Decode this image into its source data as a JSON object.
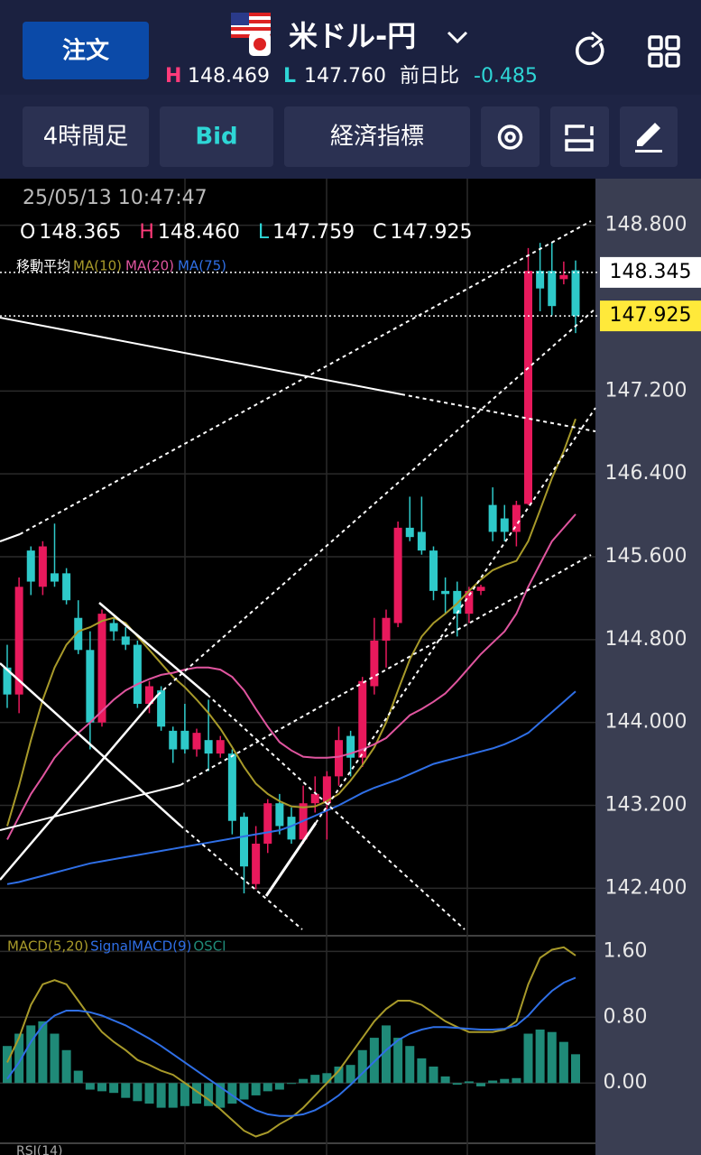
{
  "header": {
    "order_button": "注文",
    "pair": "米ドル-円",
    "high_label": "H",
    "high": "148.469",
    "low_label": "L",
    "low": "147.760",
    "change_label": "前日比",
    "change": "-0.485"
  },
  "toolbar": {
    "timeframe": "4時間足",
    "price_type": "Bid",
    "indicators": "経済指標"
  },
  "chart_data": {
    "type": "candlestick",
    "timestamp": "25/05/13 10:47:47",
    "ohlc": {
      "labels": [
        "O",
        "H",
        "L",
        "C"
      ],
      "values": [
        148.365,
        148.46,
        147.759,
        147.925
      ],
      "value_labels": [
        "148.365",
        "148.460",
        "147.759",
        "147.925"
      ]
    },
    "ma_label": "移動平均",
    "up_color": "#e8195c",
    "down_color": "#2ec9c9",
    "candles": [
      [
        144.53,
        144.75,
        144.14,
        144.27
      ],
      [
        144.27,
        145.4,
        144.09,
        145.31
      ],
      [
        145.66,
        145.7,
        145.23,
        145.36
      ],
      [
        145.31,
        145.75,
        145.23,
        145.7
      ],
      [
        145.44,
        145.92,
        145.31,
        145.36
      ],
      [
        145.44,
        145.49,
        145.14,
        145.18
      ],
      [
        145.01,
        145.18,
        144.66,
        144.7
      ],
      [
        144.7,
        144.88,
        143.74,
        144.0
      ],
      [
        144.0,
        145.09,
        143.96,
        145.05
      ],
      [
        144.96,
        145.01,
        144.79,
        144.88
      ],
      [
        144.83,
        144.92,
        144.7,
        144.75
      ],
      [
        144.75,
        144.79,
        144.14,
        144.18
      ],
      [
        144.18,
        144.4,
        144.09,
        144.35
      ],
      [
        144.31,
        144.35,
        143.92,
        143.96
      ],
      [
        143.92,
        143.96,
        143.61,
        143.74
      ],
      [
        143.92,
        144.18,
        143.7,
        143.74
      ],
      [
        143.74,
        143.94,
        143.67,
        143.9
      ],
      [
        143.83,
        144.22,
        143.53,
        143.7
      ],
      [
        143.7,
        143.87,
        143.66,
        143.83
      ],
      [
        143.7,
        143.74,
        142.92,
        143.05
      ],
      [
        143.09,
        143.13,
        142.35,
        142.61
      ],
      [
        142.44,
        143.0,
        142.39,
        142.83
      ],
      [
        142.83,
        143.26,
        142.74,
        143.22
      ],
      [
        143.22,
        143.31,
        142.92,
        143.0
      ],
      [
        143.09,
        143.18,
        142.83,
        142.87
      ],
      [
        142.87,
        143.39,
        142.83,
        143.22
      ],
      [
        143.22,
        143.48,
        143.13,
        143.31
      ],
      [
        143.22,
        143.53,
        142.87,
        143.48
      ],
      [
        143.48,
        143.96,
        143.39,
        143.83
      ],
      [
        143.87,
        143.92,
        143.48,
        143.66
      ],
      [
        143.66,
        144.44,
        143.57,
        144.4
      ],
      [
        144.35,
        145.01,
        144.27,
        144.79
      ],
      [
        144.79,
        145.09,
        144.53,
        145.01
      ],
      [
        144.96,
        145.94,
        144.92,
        145.88
      ],
      [
        145.88,
        146.18,
        145.75,
        145.79
      ],
      [
        145.84,
        146.18,
        145.62,
        145.66
      ],
      [
        145.66,
        145.7,
        145.18,
        145.27
      ],
      [
        145.27,
        145.4,
        145.05,
        145.24
      ],
      [
        145.27,
        145.36,
        144.83,
        145.05
      ],
      [
        145.05,
        145.31,
        144.96,
        145.27
      ],
      [
        145.27,
        145.33,
        145.23,
        145.31
      ],
      [
        146.1,
        146.27,
        145.75,
        145.84
      ],
      [
        145.97,
        146.1,
        145.75,
        145.84
      ],
      [
        145.84,
        146.14,
        145.7,
        146.1
      ],
      [
        146.11,
        148.58,
        146.1,
        148.36
      ],
      [
        148.36,
        148.63,
        147.97,
        148.19
      ],
      [
        148.36,
        148.64,
        147.93,
        148.02
      ],
      [
        148.28,
        148.45,
        148.23,
        148.32
      ],
      [
        148.365,
        148.46,
        147.759,
        147.925
      ]
    ],
    "ylim": [
      141.95,
      149.25
    ],
    "yticks": [
      {
        "value": 148.8,
        "label": "148.800"
      },
      {
        "value": 147.2,
        "label": "147.200"
      },
      {
        "value": 146.4,
        "label": "146.400"
      },
      {
        "value": 145.6,
        "label": "145.600"
      },
      {
        "value": 144.8,
        "label": "144.800"
      },
      {
        "value": 144.0,
        "label": "144.000"
      },
      {
        "value": 143.2,
        "label": "143.200"
      },
      {
        "value": 142.4,
        "label": "142.400"
      }
    ],
    "price_lines": [
      {
        "value": 148.345,
        "color": "#ffffff"
      },
      {
        "value": 147.925,
        "color": "#ffe93a"
      }
    ],
    "series": [
      {
        "name": "MA(10)",
        "color": "#a89a2a",
        "values": [
          143.0,
          143.39,
          143.83,
          144.22,
          144.53,
          144.75,
          144.88,
          144.92,
          144.98,
          145.01,
          144.96,
          144.83,
          144.7,
          144.57,
          144.44,
          144.34,
          144.22,
          144.09,
          143.94,
          143.76,
          143.57,
          143.41,
          143.31,
          143.24,
          143.19,
          143.18,
          143.19,
          143.24,
          143.31,
          143.44,
          143.59,
          143.76,
          144.0,
          144.31,
          144.61,
          144.83,
          144.96,
          145.05,
          145.15,
          145.27,
          145.38,
          145.47,
          145.52,
          145.56,
          145.75,
          146.05,
          146.36,
          146.62,
          146.93
        ]
      },
      {
        "name": "MA(20)",
        "color": "#e0559f",
        "values": [
          142.87,
          143.09,
          143.31,
          143.48,
          143.66,
          143.79,
          143.9,
          144.0,
          144.11,
          144.22,
          144.31,
          144.37,
          144.42,
          144.46,
          144.48,
          144.51,
          144.53,
          144.53,
          144.51,
          144.44,
          144.31,
          144.13,
          143.96,
          143.81,
          143.73,
          143.67,
          143.66,
          143.66,
          143.67,
          143.7,
          143.74,
          143.79,
          143.85,
          143.96,
          144.07,
          144.13,
          144.2,
          144.28,
          144.4,
          144.53,
          144.66,
          144.77,
          144.88,
          145.05,
          145.31,
          145.53,
          145.75,
          145.88,
          146.01
        ]
      },
      {
        "name": "MA(75)",
        "color": "#2f6fe6",
        "values": [
          142.44,
          142.46,
          142.49,
          142.52,
          142.55,
          142.58,
          142.61,
          142.64,
          142.66,
          142.68,
          142.7,
          142.72,
          142.74,
          142.76,
          142.78,
          142.8,
          142.82,
          142.84,
          142.86,
          142.88,
          142.9,
          142.92,
          142.94,
          142.96,
          143.0,
          143.05,
          143.1,
          143.15,
          143.2,
          143.26,
          143.32,
          143.37,
          143.41,
          143.45,
          143.5,
          143.55,
          143.6,
          143.63,
          143.66,
          143.69,
          143.72,
          143.75,
          143.79,
          143.84,
          143.9,
          144.0,
          144.1,
          144.2,
          144.3
        ]
      }
    ],
    "macd": {
      "ylim": [
        -0.71,
        1.79
      ],
      "yticks": [
        {
          "value": 1.6,
          "label": "1.60"
        },
        {
          "value": 0.8,
          "label": "0.80"
        },
        {
          "value": 0,
          "label": "0.00"
        }
      ],
      "series": [
        {
          "name": "MACD(5,20)",
          "color": "#a89a2a",
          "values": [
            0.25,
            0.55,
            0.95,
            1.2,
            1.25,
            1.2,
            1.0,
            0.8,
            0.62,
            0.5,
            0.4,
            0.28,
            0.22,
            0.15,
            0.1,
            0.0,
            -0.1,
            -0.2,
            -0.32,
            -0.45,
            -0.58,
            -0.65,
            -0.6,
            -0.5,
            -0.42,
            -0.3,
            -0.15,
            0.0,
            0.15,
            0.35,
            0.55,
            0.75,
            0.9,
            1.0,
            1.0,
            0.95,
            0.85,
            0.75,
            0.68,
            0.62,
            0.62,
            0.62,
            0.65,
            0.75,
            1.2,
            1.52,
            1.62,
            1.65,
            1.55
          ]
        },
        {
          "name": "SignalMACD(9)",
          "color": "#2f6fe6",
          "values": [
            0.05,
            0.25,
            0.5,
            0.7,
            0.82,
            0.88,
            0.88,
            0.86,
            0.82,
            0.76,
            0.7,
            0.62,
            0.54,
            0.45,
            0.35,
            0.25,
            0.15,
            0.05,
            -0.05,
            -0.15,
            -0.25,
            -0.33,
            -0.38,
            -0.4,
            -0.4,
            -0.38,
            -0.33,
            -0.25,
            -0.15,
            -0.02,
            0.12,
            0.26,
            0.4,
            0.52,
            0.6,
            0.65,
            0.68,
            0.68,
            0.67,
            0.66,
            0.65,
            0.65,
            0.66,
            0.7,
            0.82,
            0.98,
            1.12,
            1.22,
            1.28
          ]
        },
        {
          "name": "OSCI",
          "color": "#1f8a78",
          "values": [
            0.45,
            0.6,
            0.7,
            0.75,
            0.6,
            0.4,
            0.15,
            -0.08,
            -0.1,
            -0.12,
            -0.18,
            -0.22,
            -0.25,
            -0.3,
            -0.3,
            -0.28,
            -0.25,
            -0.28,
            -0.3,
            -0.25,
            -0.2,
            -0.15,
            -0.1,
            -0.08,
            0.0,
            0.05,
            0.1,
            0.12,
            0.2,
            0.22,
            0.4,
            0.55,
            0.7,
            0.55,
            0.45,
            0.3,
            0.2,
            0.08,
            -0.02,
            0.02,
            -0.04,
            0.03,
            0.05,
            0.06,
            0.6,
            0.65,
            0.62,
            0.5,
            0.35
          ]
        }
      ]
    },
    "rsi_label": "RSI(14)"
  }
}
